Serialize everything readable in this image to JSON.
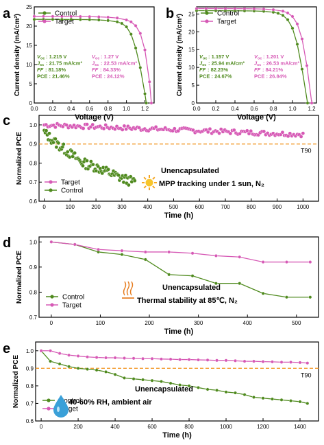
{
  "colors": {
    "control": "#4f8a1e",
    "target": "#d659b5",
    "t90": "#f39a2b",
    "control_light": "#7cba3c",
    "target_light": "#e88dd0"
  },
  "chart_data": [
    {
      "panel": "a",
      "type": "line",
      "xlabel": "Voltage (V)",
      "ylabel": "Current density (mA/cm²)",
      "xlim": [
        0,
        1.3
      ],
      "ylim": [
        0,
        25
      ],
      "xticks": [
        "0.0",
        "0.2",
        "0.4",
        "0.6",
        "0.8",
        "1.0",
        "1.2"
      ],
      "yticks": [
        "0",
        "5",
        "10",
        "15",
        "20",
        "25"
      ],
      "legend": [
        "Control",
        "Target"
      ],
      "series": [
        {
          "name": "Control",
          "x": [
            0,
            0.1,
            0.2,
            0.3,
            0.4,
            0.5,
            0.6,
            0.7,
            0.8,
            0.9,
            0.95,
            1.0,
            1.05,
            1.1,
            1.15,
            1.2,
            1.215
          ],
          "values": [
            21.75,
            21.75,
            21.74,
            21.73,
            21.72,
            21.7,
            21.68,
            21.6,
            21.45,
            21.1,
            20.7,
            19.8,
            17.9,
            14.3,
            9.2,
            2.4,
            0
          ]
        },
        {
          "name": "Target",
          "x": [
            0,
            0.1,
            0.2,
            0.3,
            0.4,
            0.5,
            0.6,
            0.7,
            0.8,
            0.9,
            1.0,
            1.05,
            1.1,
            1.15,
            1.2,
            1.25,
            1.27
          ],
          "values": [
            22.53,
            22.53,
            22.52,
            22.51,
            22.5,
            22.48,
            22.45,
            22.4,
            22.3,
            22.1,
            21.6,
            21.1,
            20.1,
            18.1,
            13.8,
            5.5,
            0
          ]
        }
      ],
      "params": {
        "control": [
          "1.215 V",
          "21.75 mA/cm²",
          "81.18%",
          "PCE : 21.46%"
        ],
        "target": [
          "1.27 V",
          "22.53 mA/cm²",
          "84.33%",
          "PCE : 24.12%"
        ]
      }
    },
    {
      "panel": "b",
      "type": "line",
      "xlabel": "Voltage (V)",
      "ylabel": "Current density (mA/cm²)",
      "xlim": [
        0,
        1.25
      ],
      "ylim": [
        0,
        27
      ],
      "xticks": [
        "0.0",
        "0.2",
        "0.4",
        "0.6",
        "0.8",
        "1.0",
        "1.2"
      ],
      "yticks": [
        "0",
        "5",
        "10",
        "15",
        "20",
        "25"
      ],
      "legend": [
        "Control",
        "Target"
      ],
      "series": [
        {
          "name": "Control",
          "x": [
            0,
            0.1,
            0.2,
            0.3,
            0.4,
            0.5,
            0.6,
            0.7,
            0.8,
            0.85,
            0.9,
            0.95,
            1.0,
            1.05,
            1.1,
            1.157
          ],
          "values": [
            25.94,
            25.94,
            25.93,
            25.92,
            25.9,
            25.88,
            25.85,
            25.75,
            25.5,
            25.2,
            24.6,
            23.4,
            21.0,
            16.5,
            9.5,
            0
          ]
        },
        {
          "name": "Target",
          "x": [
            0,
            0.1,
            0.2,
            0.3,
            0.4,
            0.5,
            0.6,
            0.7,
            0.8,
            0.9,
            0.95,
            1.0,
            1.05,
            1.1,
            1.15,
            1.201
          ],
          "values": [
            26.53,
            26.53,
            26.52,
            26.51,
            26.5,
            26.48,
            26.45,
            26.38,
            26.2,
            25.8,
            25.3,
            24.3,
            22.2,
            18.0,
            10.5,
            0
          ]
        }
      ],
      "params": {
        "control": [
          "1.157 V",
          "25.94 mA/cm²",
          "82.23%",
          "PCE : 24.67%"
        ],
        "target": [
          "1.201 V",
          "26.53 mA/cm²",
          "84.21%",
          "PCE : 26.84%"
        ]
      }
    },
    {
      "panel": "c",
      "type": "scatter",
      "xlabel": "Time (h)",
      "ylabel": "Normalized PCE",
      "xlim": [
        -20,
        1060
      ],
      "ylim": [
        0.6,
        1.05
      ],
      "xticks": [
        "0",
        "100",
        "200",
        "300",
        "400",
        "500",
        "600",
        "700",
        "800",
        "900",
        "1000"
      ],
      "yticks": [
        "0.6",
        "0.7",
        "0.8",
        "0.9",
        "1.0"
      ],
      "legend": [
        "Target",
        "Control"
      ],
      "t90": 0.9,
      "t90_label": "T90",
      "annotation": [
        "Unencapsulated",
        "MPP tracking under 1 sun, N₂"
      ],
      "series": [
        {
          "name": "Target",
          "x": [
            0,
            1000
          ],
          "values": [
            1.0,
            0.95
          ],
          "noise": 0.012
        },
        {
          "name": "Control",
          "x": [
            0,
            50,
            100,
            150,
            200,
            250,
            300,
            350
          ],
          "values": [
            0.96,
            0.9,
            0.85,
            0.8,
            0.78,
            0.75,
            0.72,
            0.7
          ],
          "noise": 0.025
        }
      ]
    },
    {
      "panel": "d",
      "type": "line",
      "xlabel": "Time (h)",
      "ylabel": "Normalized PCE",
      "xlim": [
        -25,
        545
      ],
      "ylim": [
        0.7,
        1.02
      ],
      "xticks": [
        "0",
        "100",
        "200",
        "300",
        "400",
        "500"
      ],
      "yticks": [
        "0.7",
        "0.8",
        "0.9",
        "1.0"
      ],
      "legend": [
        "Control",
        "Target"
      ],
      "annotation": [
        "Unencapsulated",
        "Thermal stability at 85℃, N₂"
      ],
      "series": [
        {
          "name": "Control",
          "x": [
            0,
            48,
            96,
            144,
            192,
            240,
            288,
            336,
            384,
            432,
            480,
            528
          ],
          "values": [
            1.0,
            0.99,
            0.96,
            0.95,
            0.93,
            0.87,
            0.865,
            0.835,
            0.835,
            0.795,
            0.78,
            0.78
          ]
        },
        {
          "name": "Target",
          "x": [
            0,
            48,
            96,
            144,
            192,
            240,
            288,
            336,
            384,
            432,
            480,
            528
          ],
          "values": [
            1.0,
            0.99,
            0.97,
            0.965,
            0.96,
            0.96,
            0.955,
            0.945,
            0.94,
            0.92,
            0.92,
            0.92
          ]
        }
      ]
    },
    {
      "panel": "e",
      "type": "line",
      "xlabel": "Time (h)",
      "ylabel": "Normalized PCE",
      "xlim": [
        -30,
        1500
      ],
      "ylim": [
        0.6,
        1.05
      ],
      "xticks": [
        "0",
        "200",
        "400",
        "600",
        "800",
        "1000",
        "1200",
        "1400"
      ],
      "yticks": [
        "0.6",
        "0.7",
        "0.8",
        "0.9",
        "1.0"
      ],
      "legend": [
        "Control",
        "Target"
      ],
      "t90": 0.9,
      "t90_label": "T90",
      "annotation": [
        "Unencapsulated",
        "40-60% RH, ambient air"
      ],
      "series": [
        {
          "name": "Control",
          "x": [
            0,
            50,
            100,
            150,
            200,
            250,
            300,
            350,
            400,
            450,
            500,
            550,
            600,
            650,
            700,
            750,
            800,
            850,
            900,
            950,
            1000,
            1050,
            1100,
            1150,
            1200,
            1250,
            1300,
            1350,
            1400,
            1440
          ],
          "values": [
            1.0,
            0.94,
            0.925,
            0.91,
            0.9,
            0.895,
            0.89,
            0.88,
            0.865,
            0.845,
            0.84,
            0.835,
            0.83,
            0.825,
            0.815,
            0.805,
            0.8,
            0.79,
            0.78,
            0.775,
            0.765,
            0.76,
            0.75,
            0.735,
            0.73,
            0.725,
            0.72,
            0.715,
            0.71,
            0.7
          ]
        },
        {
          "name": "Target",
          "x": [
            0,
            50,
            100,
            150,
            200,
            250,
            300,
            350,
            400,
            450,
            500,
            550,
            600,
            650,
            700,
            750,
            800,
            850,
            900,
            950,
            1000,
            1050,
            1100,
            1150,
            1200,
            1250,
            1300,
            1350,
            1400,
            1440
          ],
          "values": [
            1.0,
            1.0,
            0.985,
            0.975,
            0.97,
            0.965,
            0.962,
            0.96,
            0.96,
            0.958,
            0.957,
            0.955,
            0.955,
            0.953,
            0.952,
            0.95,
            0.95,
            0.948,
            0.947,
            0.945,
            0.945,
            0.943,
            0.94,
            0.94,
            0.938,
            0.937,
            0.935,
            0.935,
            0.933,
            0.93
          ]
        }
      ]
    }
  ]
}
